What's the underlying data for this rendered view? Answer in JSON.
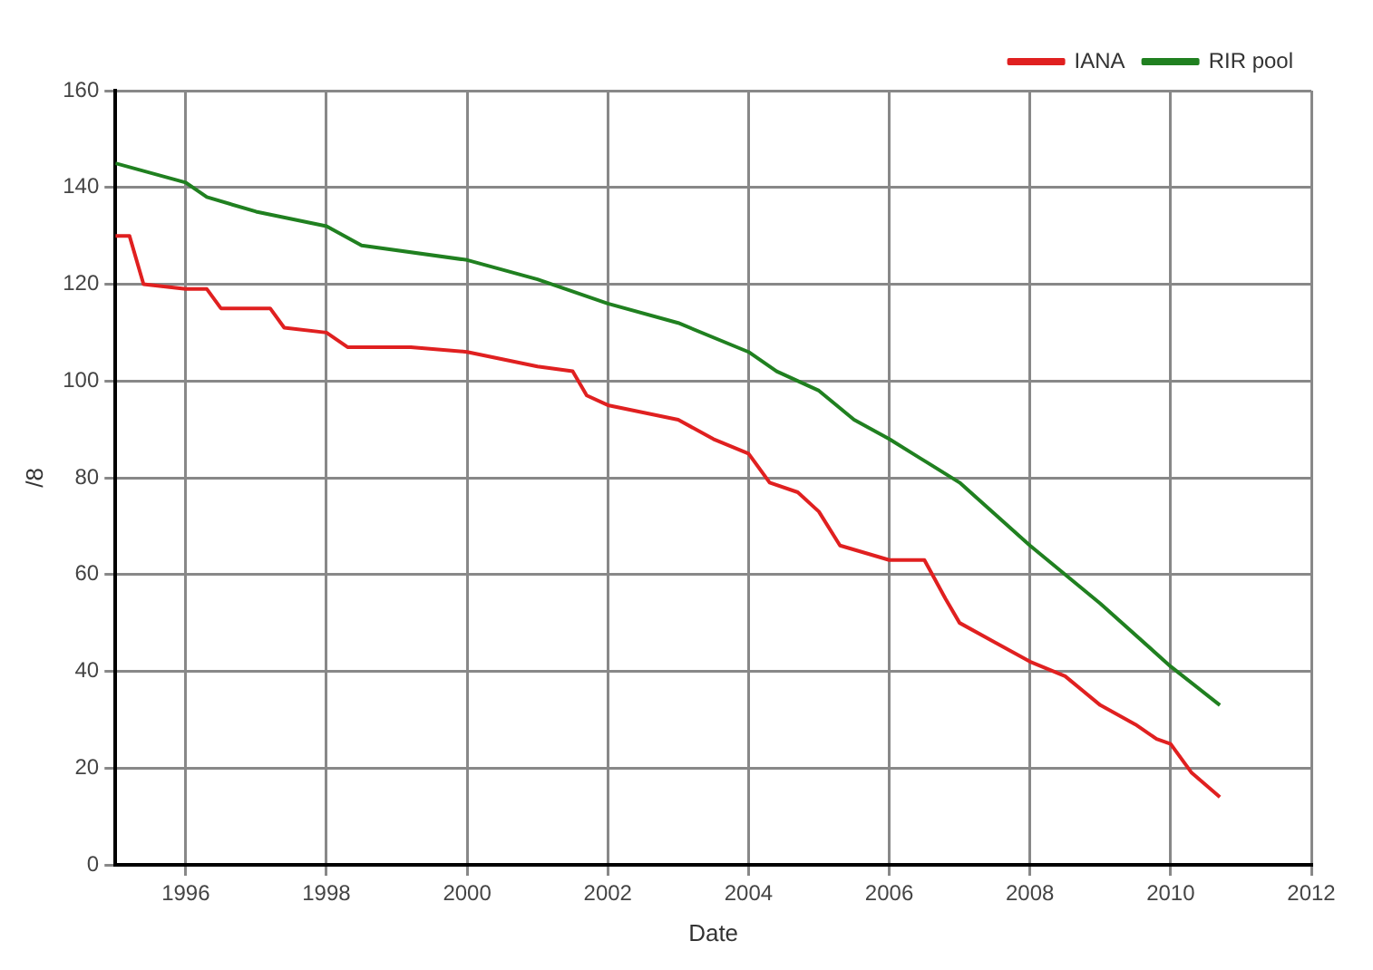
{
  "chart_data": {
    "type": "line",
    "xlabel": "Date",
    "ylabel": "/8",
    "xlim": [
      1995,
      2012
    ],
    "xticks": [
      1996,
      1998,
      2000,
      2002,
      2004,
      2006,
      2008,
      2010,
      2012
    ],
    "ylim": [
      0,
      160
    ],
    "yticks": [
      0,
      20,
      40,
      60,
      80,
      100,
      120,
      140,
      160
    ],
    "grid": true,
    "legend": "top right",
    "marker": "none",
    "line_style": "solid",
    "series": [
      {
        "name": "IANA",
        "color": "#e02020",
        "x": [
          1995,
          1995.2,
          1995.4,
          1996,
          1996.3,
          1996.5,
          1997.2,
          1997.4,
          1998,
          1998.3,
          1999.2,
          2000,
          2001,
          2001.5,
          2001.7,
          2002,
          2003,
          2003.5,
          2004,
          2004.3,
          2004.7,
          2005,
          2005.3,
          2006,
          2006.5,
          2006.8,
          2007,
          2007.5,
          2008,
          2008.5,
          2009,
          2009.5,
          2009.8,
          2010,
          2010.3,
          2010.7
        ],
        "values": [
          130,
          130,
          120,
          119,
          119,
          115,
          115,
          111,
          110,
          107,
          107,
          106,
          103,
          102,
          97,
          95,
          92,
          88,
          85,
          79,
          77,
          73,
          66,
          63,
          63,
          55,
          50,
          46,
          42,
          39,
          33,
          29,
          26,
          25,
          19,
          14
        ]
      },
      {
        "name": "RIR pool",
        "color": "#208020",
        "x": [
          1995,
          1996,
          1996.3,
          1997,
          1998,
          1998.5,
          2000,
          2001,
          2002,
          2003,
          2004,
          2004.4,
          2005,
          2005.5,
          2006,
          2007,
          2008,
          2009,
          2010,
          2010.7
        ],
        "values": [
          145,
          141,
          138,
          135,
          132,
          128,
          125,
          121,
          116,
          112,
          106,
          102,
          98,
          92,
          88,
          79,
          66,
          54,
          41,
          33
        ]
      }
    ]
  }
}
